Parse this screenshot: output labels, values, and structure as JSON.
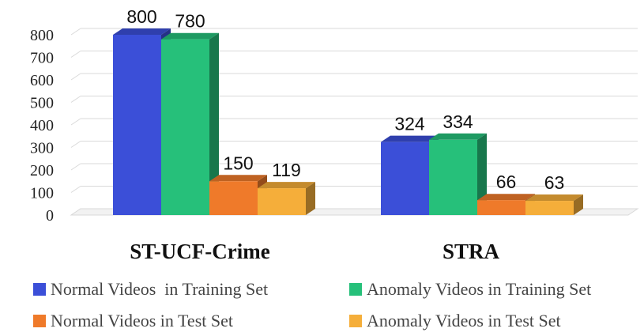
{
  "chart_data": {
    "type": "bar",
    "categories": [
      "ST-UCF-Crime",
      "STRA"
    ],
    "series": [
      {
        "name": "Normal Videos  in Training Set",
        "values": [
          800,
          324
        ],
        "color": "#3b4fd8"
      },
      {
        "name": "Anomaly Videos in Training Set",
        "values": [
          780,
          334
        ],
        "color": "#26c07a"
      },
      {
        "name": "Normal Videos in Test Set",
        "values": [
          150,
          66
        ],
        "color": "#ef7a2a"
      },
      {
        "name": "Anomaly Videos in Test Set",
        "values": [
          119,
          63
        ],
        "color": "#f5ae3a"
      }
    ],
    "yticks": [
      "0",
      "100",
      "200",
      "300",
      "400",
      "500",
      "600",
      "700",
      "800"
    ],
    "ylim": [
      0,
      800
    ],
    "grid": true,
    "legend_position": "bottom",
    "title": "",
    "xlabel": "",
    "ylabel": ""
  }
}
